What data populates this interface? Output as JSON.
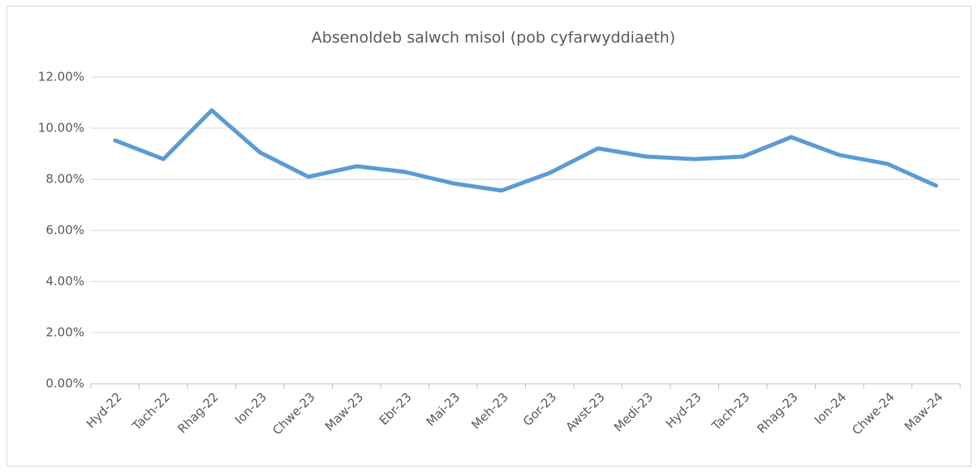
{
  "chart_data": {
    "type": "line",
    "title": "Absenoldeb salwch misol (pob cyfarwyddiaeth)",
    "categories": [
      "Hyd-22",
      "Tach-22",
      "Rhag-22",
      "Ion-23",
      "Chwe-23",
      "Maw-23",
      "Ebr-23",
      "Mai-23",
      "Meh-23",
      "Gor-23",
      "Awst-23",
      "Medi-23",
      "Hyd-23",
      "Tach-23",
      "Rhag-23",
      "Ion-24",
      "Chwe-24",
      "Maw-24"
    ],
    "series": [
      {
        "name": "Absenoldeb salwch",
        "color": "#5b9bd5",
        "values": [
          9.52,
          8.79,
          10.7,
          9.05,
          8.1,
          8.51,
          8.29,
          7.84,
          7.56,
          8.25,
          9.21,
          8.89,
          8.79,
          8.89,
          9.65,
          8.95,
          8.6,
          7.75
        ]
      }
    ],
    "ylim": [
      0,
      12
    ],
    "yticks": [
      {
        "value": 0,
        "label": "0.00%"
      },
      {
        "value": 2,
        "label": "2.00%"
      },
      {
        "value": 4,
        "label": "4.00%"
      },
      {
        "value": 6,
        "label": "6.00%"
      },
      {
        "value": 8,
        "label": "8.00%"
      },
      {
        "value": 10,
        "label": "10.00%"
      },
      {
        "value": 12,
        "label": "12.00%"
      }
    ],
    "grid": true
  }
}
